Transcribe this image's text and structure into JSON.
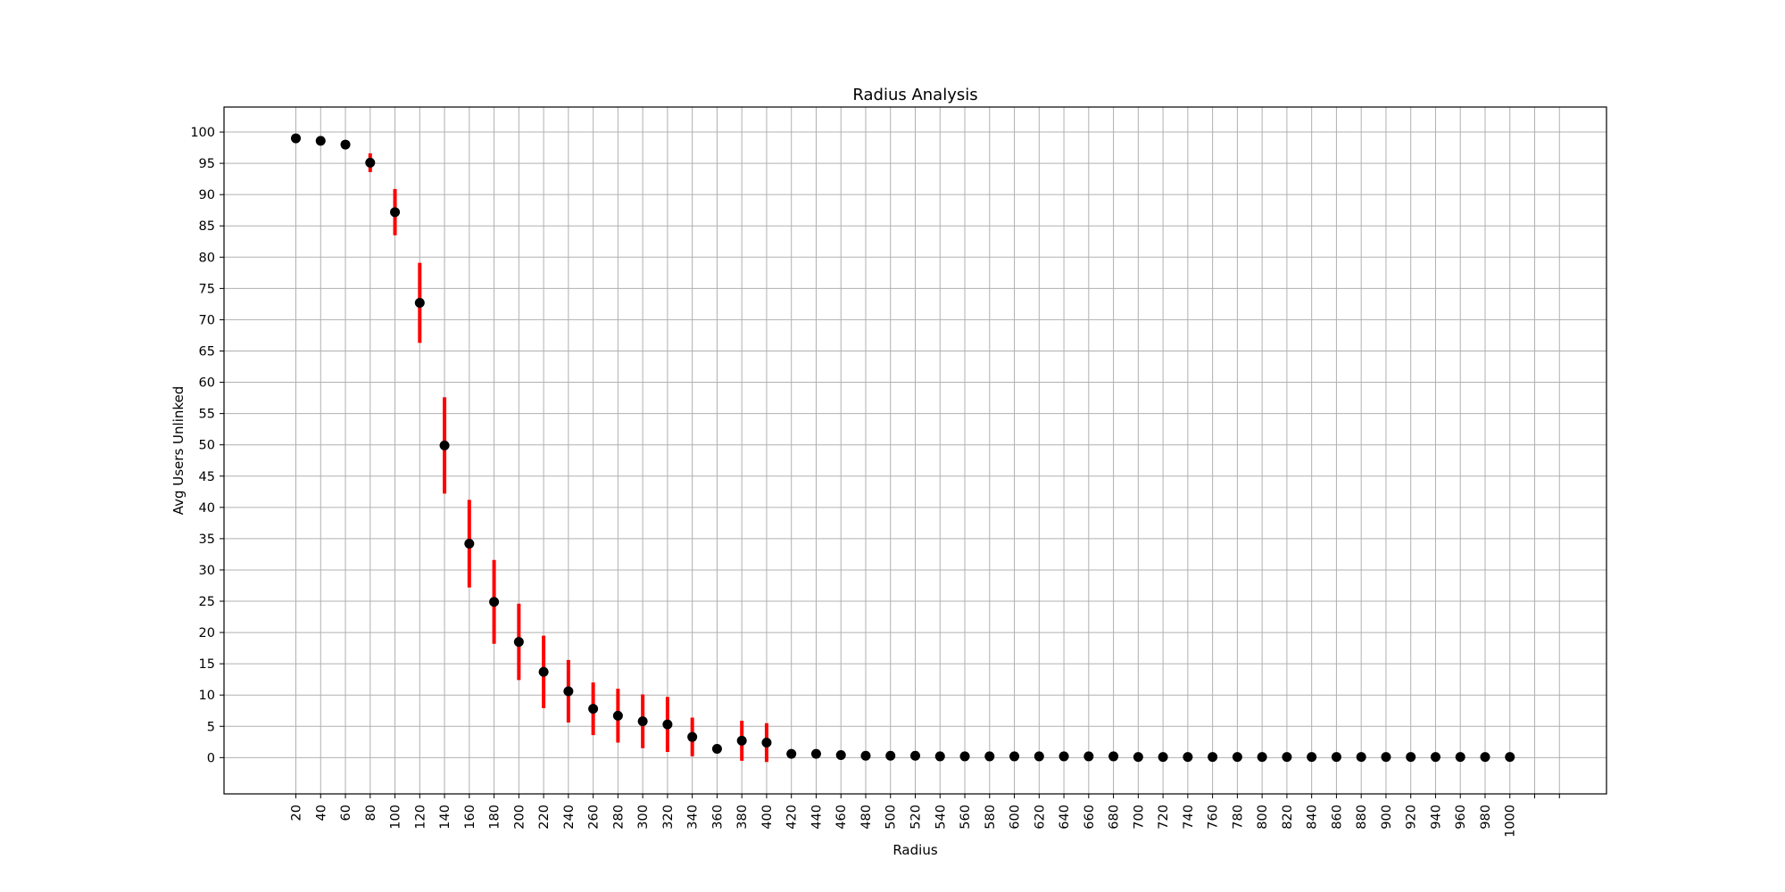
{
  "chart_data": {
    "type": "scatter",
    "title": "Radius Analysis",
    "xlabel": "Radius",
    "ylabel": "Avg Users Unlinked",
    "grid": true,
    "legend": "none",
    "x_tick_labels": [
      "20",
      "40",
      "60",
      "80",
      "100",
      "120",
      "140",
      "160",
      "180",
      "200",
      "220",
      "240",
      "260",
      "280",
      "300",
      "320",
      "340",
      "360",
      "380",
      "400",
      "420",
      "440",
      "460",
      "480",
      "500",
      "520",
      "540",
      "560",
      "580",
      "600",
      "620",
      "640",
      "660",
      "680",
      "700",
      "720",
      "740",
      "760",
      "780",
      "800",
      "820",
      "840",
      "860",
      "880",
      "900",
      "920",
      "940",
      "960",
      "980",
      "1000",
      "",
      ""
    ],
    "y_ticks": [
      0,
      5,
      10,
      15,
      20,
      25,
      30,
      35,
      40,
      45,
      50,
      55,
      60,
      65,
      70,
      75,
      80,
      85,
      90,
      95,
      100
    ],
    "xlim": [
      -2.9,
      52.9
    ],
    "ylim": [
      -5.8,
      104
    ],
    "x": [
      "20",
      "40",
      "60",
      "80",
      "100",
      "120",
      "140",
      "160",
      "180",
      "200",
      "220",
      "240",
      "260",
      "280",
      "300",
      "320",
      "340",
      "360",
      "380",
      "400",
      "420",
      "440",
      "460",
      "480",
      "500",
      "520",
      "540",
      "560",
      "580",
      "600",
      "620",
      "640",
      "660",
      "680",
      "700",
      "720",
      "740",
      "760",
      "780",
      "800",
      "820",
      "840",
      "860",
      "880",
      "900",
      "920",
      "940",
      "960",
      "980",
      "1000"
    ],
    "y": [
      99.0,
      98.6,
      98.0,
      95.1,
      87.2,
      72.7,
      49.9,
      34.2,
      24.9,
      18.5,
      13.7,
      10.6,
      7.8,
      6.7,
      5.8,
      5.3,
      3.3,
      1.4,
      2.7,
      2.4,
      0.6,
      0.6,
      0.4,
      0.3,
      0.3,
      0.3,
      0.2,
      0.2,
      0.2,
      0.2,
      0.2,
      0.2,
      0.2,
      0.2,
      0.1,
      0.1,
      0.1,
      0.1,
      0.1,
      0.1,
      0.1,
      0.1,
      0.1,
      0.1,
      0.1,
      0.1,
      0.1,
      0.1,
      0.1,
      0.1
    ],
    "yerr": [
      0,
      0,
      0,
      1.5,
      3.7,
      6.4,
      7.7,
      7.0,
      6.7,
      6.1,
      5.8,
      5.0,
      4.2,
      4.3,
      4.3,
      4.4,
      3.1,
      0,
      3.2,
      3.1,
      0,
      0,
      0,
      0,
      0,
      0,
      0,
      0,
      0,
      0,
      0,
      0,
      0,
      0,
      0,
      0,
      0,
      0,
      0,
      0,
      0,
      0,
      0,
      0,
      0,
      0,
      0,
      0,
      0,
      0
    ],
    "marker_color": "#000000",
    "errorbar_color": "#ff0000",
    "grid_color": "#b0b0b0"
  }
}
